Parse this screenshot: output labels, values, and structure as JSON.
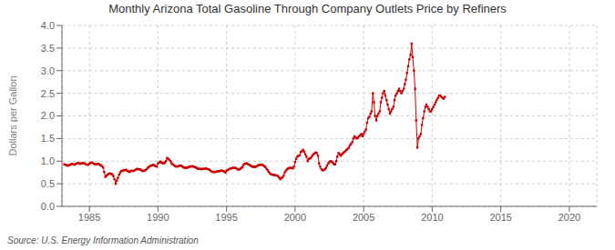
{
  "chart_data": {
    "type": "line",
    "title": "Monthly Arizona Total Gasoline Through Company Outlets Price by Refiners",
    "ylabel": "Dollars per Gallon",
    "annotation": "Source: U.S. Energy Information Administration",
    "color": "#cc0000",
    "marker": "square",
    "line_style": "solid",
    "grid": true,
    "xlim": [
      1983.0,
      2022.0
    ],
    "xticks": [
      1985,
      1990,
      1995,
      2000,
      2005,
      2010,
      2015,
      2020
    ],
    "ylim": [
      0.0,
      4.0
    ],
    "yticks": [
      {
        "value": 0.0,
        "label": "0.0"
      },
      0.5,
      {
        "value": 1.0,
        "label": "1.0"
      },
      1.5,
      {
        "value": 2.0,
        "label": "2.0"
      },
      2.5,
      {
        "value": 3.0,
        "label": "3.0"
      },
      3.5,
      {
        "value": 4.0,
        "label": "4.0"
      }
    ],
    "x": [
      1983.17,
      1983.25,
      1983.33,
      1983.42,
      1983.5,
      1983.58,
      1983.67,
      1983.75,
      1983.83,
      1983.92,
      1984.0,
      1984.08,
      1984.17,
      1984.25,
      1984.33,
      1984.42,
      1984.5,
      1984.58,
      1984.67,
      1984.75,
      1984.83,
      1984.92,
      1985.0,
      1985.08,
      1985.17,
      1985.25,
      1985.33,
      1985.42,
      1985.5,
      1985.58,
      1985.67,
      1985.75,
      1985.83,
      1985.92,
      1986.0,
      1986.08,
      1986.17,
      1986.25,
      1986.33,
      1986.42,
      1986.5,
      1986.58,
      1986.67,
      1986.75,
      1986.83,
      1986.92,
      1987.0,
      1987.08,
      1987.17,
      1987.25,
      1987.33,
      1987.42,
      1987.5,
      1987.58,
      1987.67,
      1987.75,
      1987.83,
      1987.92,
      1988.0,
      1988.08,
      1988.17,
      1988.25,
      1988.33,
      1988.42,
      1988.5,
      1988.58,
      1988.67,
      1988.75,
      1988.83,
      1988.92,
      1989.0,
      1989.08,
      1989.17,
      1989.25,
      1989.33,
      1989.42,
      1989.5,
      1989.58,
      1989.67,
      1989.75,
      1989.83,
      1989.92,
      1990.0,
      1990.08,
      1990.17,
      1990.25,
      1990.33,
      1990.42,
      1990.5,
      1990.58,
      1990.67,
      1990.75,
      1990.83,
      1990.92,
      1991.0,
      1991.08,
      1991.17,
      1991.25,
      1991.33,
      1991.42,
      1991.5,
      1991.58,
      1991.67,
      1991.75,
      1991.83,
      1991.92,
      1992.0,
      1992.08,
      1992.17,
      1992.25,
      1992.33,
      1992.42,
      1992.5,
      1992.58,
      1992.67,
      1992.75,
      1992.83,
      1992.92,
      1993.0,
      1993.08,
      1993.17,
      1993.25,
      1993.33,
      1993.42,
      1993.5,
      1993.58,
      1993.67,
      1993.75,
      1993.83,
      1993.92,
      1994.0,
      1994.08,
      1994.17,
      1994.25,
      1994.33,
      1994.42,
      1994.5,
      1994.58,
      1994.67,
      1994.75,
      1994.83,
      1994.92,
      1995.0,
      1995.08,
      1995.17,
      1995.25,
      1995.33,
      1995.42,
      1995.5,
      1995.58,
      1995.67,
      1995.75,
      1995.83,
      1995.92,
      1996.0,
      1996.08,
      1996.17,
      1996.25,
      1996.33,
      1996.42,
      1996.5,
      1996.58,
      1996.67,
      1996.75,
      1996.83,
      1996.92,
      1997.0,
      1997.08,
      1997.17,
      1997.25,
      1997.33,
      1997.42,
      1997.5,
      1997.58,
      1997.67,
      1997.75,
      1997.83,
      1997.92,
      1998.0,
      1998.08,
      1998.17,
      1998.25,
      1998.33,
      1998.42,
      1998.5,
      1998.58,
      1998.67,
      1998.75,
      1998.83,
      1998.92,
      1999.0,
      1999.08,
      1999.17,
      1999.25,
      1999.33,
      1999.42,
      1999.5,
      1999.58,
      1999.67,
      1999.75,
      1999.83,
      1999.92,
      2000.0,
      2000.08,
      2000.17,
      2000.25,
      2000.33,
      2000.42,
      2000.5,
      2000.58,
      2000.67,
      2000.75,
      2000.83,
      2000.92,
      2001.0,
      2001.08,
      2001.17,
      2001.25,
      2001.33,
      2001.42,
      2001.5,
      2001.58,
      2001.67,
      2001.75,
      2001.83,
      2001.92,
      2002.0,
      2002.08,
      2002.17,
      2002.25,
      2002.33,
      2002.42,
      2002.5,
      2002.58,
      2002.67,
      2002.75,
      2002.83,
      2002.92,
      2003.0,
      2003.08,
      2003.17,
      2003.25,
      2003.33,
      2003.42,
      2003.5,
      2003.58,
      2003.67,
      2003.75,
      2003.83,
      2003.92,
      2004.0,
      2004.08,
      2004.17,
      2004.25,
      2004.33,
      2004.42,
      2004.5,
      2004.58,
      2004.67,
      2004.75,
      2004.83,
      2004.92,
      2005.0,
      2005.08,
      2005.17,
      2005.25,
      2005.33,
      2005.42,
      2005.5,
      2005.58,
      2005.67,
      2005.75,
      2005.83,
      2005.92,
      2006.0,
      2006.08,
      2006.17,
      2006.25,
      2006.33,
      2006.42,
      2006.5,
      2006.58,
      2006.67,
      2006.75,
      2006.83,
      2006.92,
      2007.0,
      2007.08,
      2007.17,
      2007.25,
      2007.33,
      2007.42,
      2007.5,
      2007.58,
      2007.67,
      2007.75,
      2007.83,
      2007.92,
      2008.0,
      2008.08,
      2008.17,
      2008.25,
      2008.33,
      2008.42,
      2008.5,
      2008.58,
      2008.67,
      2008.75,
      2008.83,
      2008.92,
      2009.0,
      2009.08,
      2009.17,
      2009.25,
      2009.33,
      2009.42,
      2009.5,
      2009.58,
      2009.67,
      2009.75,
      2009.83,
      2009.92,
      2010.0,
      2010.08,
      2010.17,
      2010.25,
      2010.33,
      2010.42,
      2010.5,
      2010.58,
      2010.67,
      2010.75,
      2010.83,
      2010.92
    ],
    "values": [
      0.93,
      0.92,
      0.91,
      0.9,
      0.91,
      0.92,
      0.93,
      0.94,
      0.93,
      0.92,
      0.94,
      0.95,
      0.96,
      0.95,
      0.94,
      0.95,
      0.96,
      0.95,
      0.95,
      0.93,
      0.92,
      0.92,
      0.94,
      0.96,
      0.97,
      0.96,
      0.94,
      0.93,
      0.93,
      0.94,
      0.94,
      0.92,
      0.91,
      0.89,
      0.86,
      0.76,
      0.65,
      0.68,
      0.7,
      0.72,
      0.73,
      0.72,
      0.71,
      0.67,
      0.6,
      0.5,
      0.57,
      0.63,
      0.7,
      0.75,
      0.78,
      0.79,
      0.8,
      0.8,
      0.81,
      0.79,
      0.77,
      0.76,
      0.78,
      0.79,
      0.78,
      0.79,
      0.8,
      0.82,
      0.83,
      0.82,
      0.82,
      0.81,
      0.79,
      0.78,
      0.79,
      0.8,
      0.82,
      0.85,
      0.87,
      0.89,
      0.9,
      0.91,
      0.92,
      0.9,
      0.89,
      0.88,
      0.95,
      0.97,
      0.99,
      0.97,
      0.96,
      0.95,
      0.97,
      1.0,
      1.07,
      1.05,
      1.03,
      1.0,
      0.95,
      0.93,
      0.91,
      0.89,
      0.88,
      0.88,
      0.89,
      0.9,
      0.9,
      0.89,
      0.87,
      0.85,
      0.86,
      0.85,
      0.86,
      0.87,
      0.88,
      0.88,
      0.89,
      0.88,
      0.87,
      0.86,
      0.85,
      0.83,
      0.83,
      0.83,
      0.82,
      0.83,
      0.83,
      0.83,
      0.84,
      0.83,
      0.82,
      0.81,
      0.79,
      0.77,
      0.76,
      0.76,
      0.76,
      0.77,
      0.77,
      0.78,
      0.78,
      0.79,
      0.79,
      0.78,
      0.77,
      0.75,
      0.79,
      0.8,
      0.82,
      0.83,
      0.84,
      0.85,
      0.85,
      0.85,
      0.85,
      0.83,
      0.82,
      0.81,
      0.83,
      0.85,
      0.87,
      0.92,
      0.94,
      0.95,
      0.95,
      0.93,
      0.92,
      0.9,
      0.89,
      0.87,
      0.88,
      0.87,
      0.88,
      0.9,
      0.91,
      0.92,
      0.92,
      0.92,
      0.91,
      0.89,
      0.87,
      0.83,
      0.8,
      0.76,
      0.73,
      0.71,
      0.7,
      0.7,
      0.69,
      0.69,
      0.68,
      0.67,
      0.64,
      0.6,
      0.63,
      0.64,
      0.68,
      0.75,
      0.79,
      0.82,
      0.84,
      0.85,
      0.85,
      0.85,
      0.84,
      0.88,
      0.98,
      1.05,
      1.1,
      1.12,
      1.13,
      1.2,
      1.22,
      1.25,
      1.21,
      1.15,
      1.1,
      1.0,
      1.05,
      1.06,
      1.08,
      1.12,
      1.15,
      1.17,
      1.19,
      1.18,
      1.12,
      0.95,
      0.88,
      0.82,
      0.8,
      0.8,
      0.82,
      0.85,
      0.9,
      0.95,
      0.98,
      1.0,
      0.99,
      0.97,
      0.93,
      0.93,
      1.0,
      1.1,
      1.18,
      1.15,
      1.12,
      1.15,
      1.18,
      1.2,
      1.22,
      1.25,
      1.27,
      1.3,
      1.35,
      1.38,
      1.42,
      1.5,
      1.55,
      1.52,
      1.5,
      1.52,
      1.55,
      1.57,
      1.6,
      1.55,
      1.6,
      1.65,
      1.7,
      1.85,
      1.95,
      1.98,
      2.05,
      2.1,
      2.5,
      2.3,
      2.0,
      1.9,
      2.0,
      2.05,
      2.1,
      2.3,
      2.4,
      2.5,
      2.55,
      2.45,
      2.35,
      2.25,
      2.15,
      2.05,
      2.1,
      2.15,
      2.2,
      2.35,
      2.45,
      2.5,
      2.55,
      2.6,
      2.55,
      2.5,
      2.55,
      2.6,
      2.7,
      2.8,
      2.95,
      3.1,
      3.25,
      3.35,
      3.6,
      3.3,
      3.0,
      2.6,
      1.9,
      1.3,
      1.5,
      1.55,
      1.6,
      1.8,
      1.95,
      2.1,
      2.2,
      2.25,
      2.2,
      2.15,
      2.1,
      2.1,
      2.15,
      2.2,
      2.25,
      2.3,
      2.35,
      2.4,
      2.45,
      2.45,
      2.42,
      2.4,
      2.38,
      2.42
    ]
  }
}
